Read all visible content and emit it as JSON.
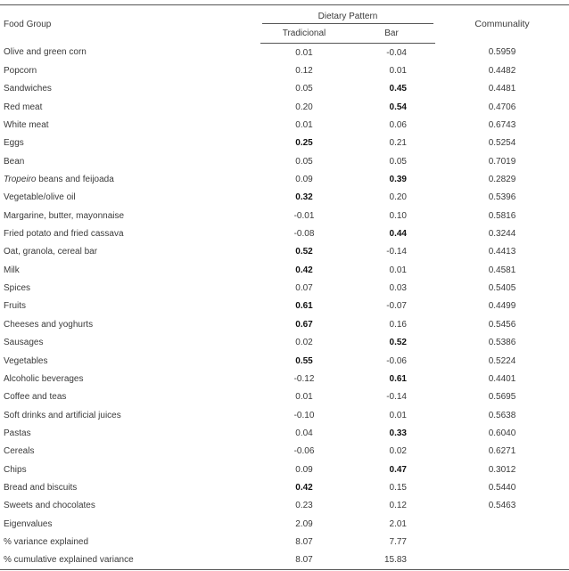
{
  "header": {
    "food_group": "Food Group",
    "dietary_pattern": "Dietary Pattern",
    "tradicional": "Tradicional",
    "bar": "Bar",
    "communality": "Communality"
  },
  "rows": [
    {
      "food": "Olive and green corn",
      "trad": "0.01",
      "bar": "-0.04",
      "comm": "0.5959",
      "trad_bold": false,
      "bar_bold": false
    },
    {
      "food": "Popcorn",
      "trad": "0.12",
      "bar": "0.01",
      "comm": "0.4482",
      "trad_bold": false,
      "bar_bold": false
    },
    {
      "food": "Sandwiches",
      "trad": "0.05",
      "bar": "0.45",
      "comm": "0.4481",
      "trad_bold": false,
      "bar_bold": true
    },
    {
      "food": "Red meat",
      "trad": "0.20",
      "bar": "0.54",
      "comm": "0.4706",
      "trad_bold": false,
      "bar_bold": true
    },
    {
      "food": "White meat",
      "trad": "0.01",
      "bar": "0.06",
      "comm": "0.6743",
      "trad_bold": false,
      "bar_bold": false
    },
    {
      "food": "Eggs",
      "trad": "0.25",
      "bar": "0.21",
      "comm": "0.5254",
      "trad_bold": true,
      "bar_bold": false
    },
    {
      "food": "Bean",
      "trad": "0.05",
      "bar": "0.05",
      "comm": "0.7019",
      "trad_bold": false,
      "bar_bold": false
    },
    {
      "food_italic": "Tropeiro",
      "food": " beans and feijoada",
      "trad": "0.09",
      "bar": "0.39",
      "comm": "0.2829",
      "trad_bold": false,
      "bar_bold": true
    },
    {
      "food": "Vegetable/olive oil",
      "trad": "0.32",
      "bar": "0.20",
      "comm": "0.5396",
      "trad_bold": true,
      "bar_bold": false
    },
    {
      "food": "Margarine, butter, mayonnaise",
      "trad": "-0.01",
      "bar": "0.10",
      "comm": "0.5816",
      "trad_bold": false,
      "bar_bold": false
    },
    {
      "food": "Fried potato and fried cassava",
      "trad": "-0.08",
      "bar": "0.44",
      "comm": "0.3244",
      "trad_bold": false,
      "bar_bold": true
    },
    {
      "food": "Oat, granola, cereal bar",
      "trad": "0.52",
      "bar": "-0.14",
      "comm": "0.4413",
      "trad_bold": true,
      "bar_bold": false
    },
    {
      "food": "Milk",
      "trad": "0.42",
      "bar": "0.01",
      "comm": "0.4581",
      "trad_bold": true,
      "bar_bold": false
    },
    {
      "food": "Spices",
      "trad": "0.07",
      "bar": "0.03",
      "comm": "0.5405",
      "trad_bold": false,
      "bar_bold": false
    },
    {
      "food": "Fruits",
      "trad": "0.61",
      "bar": "-0.07",
      "comm": "0.4499",
      "trad_bold": true,
      "bar_bold": false
    },
    {
      "food": "Cheeses and yoghurts",
      "trad": "0.67",
      "bar": "0.16",
      "comm": "0.5456",
      "trad_bold": true,
      "bar_bold": false
    },
    {
      "food": "Sausages",
      "trad": "0.02",
      "bar": "0.52",
      "comm": "0.5386",
      "trad_bold": false,
      "bar_bold": true
    },
    {
      "food": "Vegetables",
      "trad": "0.55",
      "bar": "-0.06",
      "comm": "0.5224",
      "trad_bold": true,
      "bar_bold": false
    },
    {
      "food": "Alcoholic beverages",
      "trad": "-0.12",
      "bar": "0.61",
      "comm": "0.4401",
      "trad_bold": false,
      "bar_bold": true
    },
    {
      "food": "Coffee and teas",
      "trad": "0.01",
      "bar": "-0.14",
      "comm": "0.5695",
      "trad_bold": false,
      "bar_bold": false
    },
    {
      "food": "Soft drinks and artificial juices",
      "trad": "-0.10",
      "bar": "0.01",
      "comm": "0.5638",
      "trad_bold": false,
      "bar_bold": false
    },
    {
      "food": "Pastas",
      "trad": "0.04",
      "bar": "0.33",
      "comm": "0.6040",
      "trad_bold": false,
      "bar_bold": true
    },
    {
      "food": "Cereals",
      "trad": "-0.06",
      "bar": "0.02",
      "comm": "0.6271",
      "trad_bold": false,
      "bar_bold": false
    },
    {
      "food": "Chips",
      "trad": "0.09",
      "bar": "0.47",
      "comm": "0.3012",
      "trad_bold": false,
      "bar_bold": true
    },
    {
      "food": "Bread and biscuits",
      "trad": "0.42",
      "bar": "0.15",
      "comm": "0.5440",
      "trad_bold": true,
      "bar_bold": false
    },
    {
      "food": "Sweets and chocolates",
      "trad": "0.23",
      "bar": "0.12",
      "comm": "0.5463",
      "trad_bold": false,
      "bar_bold": false
    },
    {
      "food": "Eigenvalues",
      "trad": "2.09",
      "bar": "2.01",
      "comm": "",
      "trad_bold": false,
      "bar_bold": false
    },
    {
      "food": "% variance explained",
      "trad": "8.07",
      "bar": "7.77",
      "comm": "",
      "trad_bold": false,
      "bar_bold": false
    },
    {
      "food": "% cumulative explained variance",
      "trad": "8.07",
      "bar": "15.83",
      "comm": "",
      "trad_bold": false,
      "bar_bold": false
    }
  ]
}
